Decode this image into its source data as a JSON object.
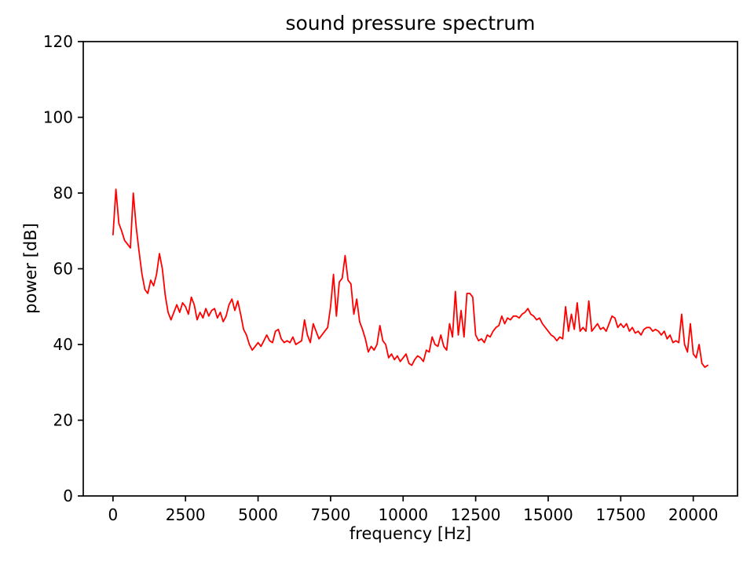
{
  "chart_data": {
    "type": "line",
    "title": "sound pressure spectrum",
    "xlabel": "frequency [Hz]",
    "ylabel": "power [dB]",
    "xlim": [
      -1025,
      21525
    ],
    "ylim": [
      0,
      120
    ],
    "xticks": [
      0,
      2500,
      5000,
      7500,
      10000,
      12500,
      15000,
      17500,
      20000
    ],
    "yticks": [
      0,
      20,
      40,
      60,
      80,
      100,
      120
    ],
    "grid": false,
    "legend": false,
    "background": "#ffffff",
    "frame_color": "#000000",
    "series": [
      {
        "color": "#ff0000",
        "x": [
          0,
          100,
          200,
          300,
          400,
          500,
          600,
          700,
          800,
          900,
          1000,
          1100,
          1200,
          1300,
          1400,
          1500,
          1600,
          1700,
          1800,
          1900,
          2000,
          2100,
          2200,
          2300,
          2400,
          2500,
          2600,
          2700,
          2800,
          2900,
          3000,
          3100,
          3200,
          3300,
          3400,
          3500,
          3600,
          3700,
          3800,
          3900,
          4000,
          4100,
          4200,
          4300,
          4400,
          4500,
          4600,
          4700,
          4800,
          4900,
          5000,
          5100,
          5200,
          5300,
          5400,
          5500,
          5600,
          5700,
          5800,
          5900,
          6000,
          6100,
          6200,
          6300,
          6400,
          6500,
          6600,
          6700,
          6800,
          6900,
          7000,
          7100,
          7200,
          7300,
          7400,
          7500,
          7600,
          7700,
          7800,
          7900,
          8000,
          8100,
          8200,
          8300,
          8400,
          8500,
          8600,
          8700,
          8800,
          8900,
          9000,
          9100,
          9200,
          9300,
          9400,
          9500,
          9600,
          9700,
          9800,
          9900,
          10000,
          10100,
          10200,
          10300,
          10400,
          10500,
          10600,
          10700,
          10800,
          10900,
          11000,
          11100,
          11200,
          11300,
          11400,
          11500,
          11600,
          11700,
          11800,
          11900,
          12000,
          12100,
          12200,
          12300,
          12400,
          12500,
          12600,
          12700,
          12800,
          12900,
          13000,
          13100,
          13200,
          13300,
          13400,
          13500,
          13600,
          13700,
          13800,
          13900,
          14000,
          14100,
          14200,
          14300,
          14400,
          14500,
          14600,
          14700,
          14800,
          14900,
          15000,
          15100,
          15200,
          15300,
          15400,
          15500,
          15600,
          15700,
          15800,
          15900,
          16000,
          16100,
          16200,
          16300,
          16400,
          16500,
          16600,
          16700,
          16800,
          16900,
          17000,
          17100,
          17200,
          17300,
          17400,
          17500,
          17600,
          17700,
          17800,
          17900,
          18000,
          18100,
          18200,
          18300,
          18400,
          18500,
          18600,
          18700,
          18800,
          18900,
          19000,
          19100,
          19200,
          19300,
          19400,
          19500,
          19600,
          19700,
          19800,
          19900,
          20000,
          20100,
          20200,
          20300,
          20400,
          20500
        ],
        "y": [
          69,
          81,
          72,
          70,
          67.5,
          66.5,
          65.5,
          80,
          71,
          64.5,
          58.5,
          54.5,
          53.5,
          57,
          55.5,
          58.5,
          64,
          60,
          53,
          48.5,
          46.5,
          48.5,
          50.5,
          48.5,
          51,
          50,
          48,
          52.5,
          50.5,
          46.5,
          48.5,
          47,
          49.5,
          47.5,
          49,
          49.5,
          47,
          48.5,
          46,
          47.5,
          50.5,
          52,
          49,
          51.5,
          48,
          44,
          42.5,
          40,
          38.5,
          39.5,
          40.5,
          39.5,
          41,
          42.5,
          41,
          40.5,
          43.5,
          44,
          41.5,
          40.5,
          41,
          40.5,
          42,
          40,
          40.5,
          41,
          46.5,
          42.5,
          40.5,
          45.5,
          43.5,
          41.5,
          42.5,
          43.5,
          44.5,
          50,
          58.5,
          47.5,
          56.5,
          57.5,
          63.5,
          57,
          56,
          48,
          52,
          46,
          44,
          41.5,
          38,
          39.5,
          38.5,
          40,
          45,
          41,
          40,
          36.5,
          37.5,
          36,
          37,
          35.5,
          36.5,
          37.5,
          35,
          34.5,
          36,
          37,
          36.5,
          35.5,
          38.5,
          38,
          42,
          40,
          39.5,
          42.5,
          39.5,
          38.5,
          45.5,
          42,
          54,
          42.5,
          49,
          42,
          53.5,
          53.5,
          52.5,
          42.5,
          41,
          41.5,
          40.5,
          42.5,
          42,
          43.5,
          44.5,
          45,
          47.5,
          45.5,
          47,
          46.5,
          47.5,
          47.5,
          47,
          48,
          48.5,
          49.5,
          48,
          47.5,
          46.5,
          47,
          45.5,
          44.5,
          43.5,
          42.5,
          42,
          41,
          42,
          41.5,
          50,
          43.5,
          48,
          44,
          51,
          43.5,
          44.5,
          43.5,
          51.5,
          43.5,
          44.5,
          45.5,
          44,
          44.5,
          43.5,
          45.5,
          47.5,
          47,
          44.5,
          45.5,
          44.5,
          45.5,
          43.5,
          44.5,
          43,
          43.5,
          42.5,
          44,
          44.5,
          44.5,
          43.5,
          44,
          43.5,
          42.5,
          43.5,
          41.5,
          42.5,
          40.5,
          41,
          40.5,
          48,
          40,
          38,
          45.5,
          37.5,
          36.5,
          40,
          35,
          34,
          34.5
        ]
      }
    ]
  }
}
